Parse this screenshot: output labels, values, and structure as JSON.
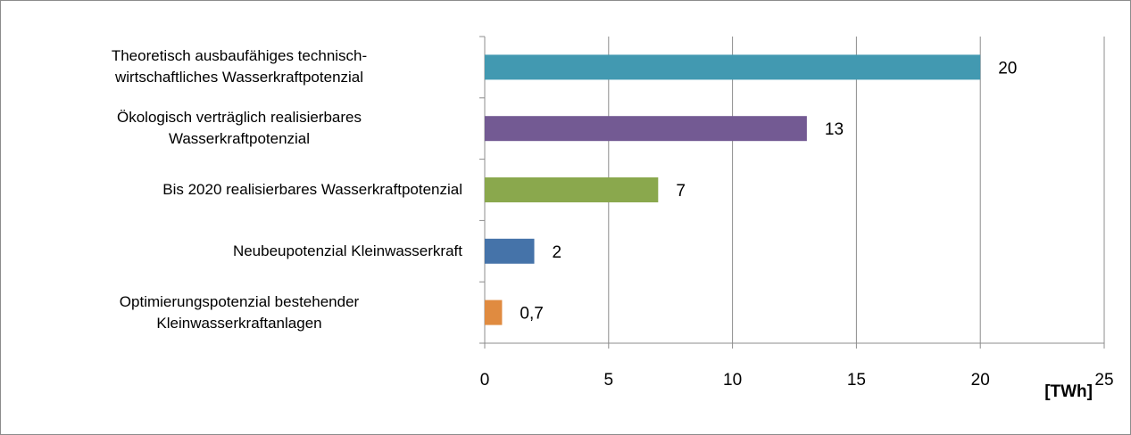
{
  "chart_data": {
    "type": "hbar",
    "categories": [
      "Theoretisch ausbaufähiges technisch-\nwirtschaftliches Wasserkraftpotenzial",
      "Ökologisch verträglich realisierbares\nWasserkraftpotenzial",
      "Bis 2020 realisierbares Wasserkraftpotenzial",
      "Neubeupotenzial Kleinwasserkraft",
      "Optimierungspotenzial bestehender\nKleinwasserkraftanlagen"
    ],
    "values": [
      20,
      13,
      7,
      2,
      0.7
    ],
    "value_labels": [
      "20",
      "13",
      "7",
      "2",
      "0,7"
    ],
    "colors": [
      "#4299b1",
      "#735a93",
      "#8aa84d",
      "#4573a9",
      "#e08b40"
    ],
    "xlabel": "[TWh]",
    "xlim": [
      0,
      25
    ],
    "xticks": [
      0,
      5,
      10,
      15,
      20,
      25
    ],
    "grid": true
  }
}
